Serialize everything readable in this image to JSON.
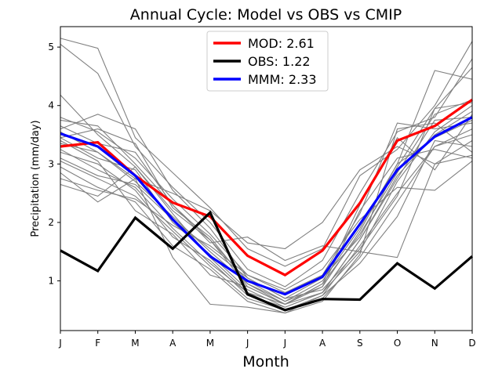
{
  "chart_data": {
    "type": "line",
    "title": "Annual Cycle: Model vs OBS vs CMIP",
    "xlabel": "Month",
    "ylabel": "Precipitation (mm/day)",
    "categories": [
      "J",
      "F",
      "M",
      "A",
      "M",
      "J",
      "J",
      "A",
      "S",
      "O",
      "N",
      "D"
    ],
    "ylim": [
      0.15,
      5.35
    ],
    "yticks": [
      1,
      2,
      3,
      4,
      5
    ],
    "legend_position": "upper center",
    "series": [
      {
        "name": "MOD",
        "legend_label": "MOD: 2.61",
        "color": "#ff0000",
        "values": [
          3.3,
          3.37,
          2.8,
          2.34,
          2.1,
          1.43,
          1.1,
          1.52,
          2.33,
          3.4,
          3.65,
          4.1
        ]
      },
      {
        "name": "OBS",
        "legend_label": "OBS: 1.22",
        "color": "#000000",
        "values": [
          1.52,
          1.17,
          2.08,
          1.55,
          2.17,
          0.77,
          0.5,
          0.69,
          0.68,
          1.3,
          0.87,
          1.42
        ]
      },
      {
        "name": "MMM",
        "legend_label": "MMM: 2.33",
        "color": "#0000ff",
        "values": [
          3.52,
          3.3,
          2.8,
          2.05,
          1.42,
          1.0,
          0.77,
          1.07,
          1.97,
          2.9,
          3.47,
          3.8
        ]
      }
    ],
    "cmip_color": "#808080",
    "cmip_series": [
      [
        5.15,
        4.98,
        3.45,
        2.85,
        2.25,
        1.55,
        1.25,
        1.55,
        2.8,
        3.25,
        4.0,
        5.1
      ],
      [
        5.05,
        4.55,
        3.3,
        2.6,
        2.0,
        1.2,
        0.9,
        1.35,
        2.5,
        3.55,
        3.8,
        4.8
      ],
      [
        4.18,
        3.5,
        2.95,
        2.2,
        1.7,
        1.0,
        0.65,
        1.0,
        1.9,
        3.0,
        4.6,
        4.45
      ],
      [
        3.8,
        3.55,
        3.1,
        2.4,
        1.8,
        1.1,
        0.8,
        1.1,
        2.15,
        3.7,
        3.6,
        3.7
      ],
      [
        3.6,
        3.85,
        3.6,
        2.55,
        1.9,
        1.05,
        0.7,
        0.85,
        1.55,
        2.45,
        3.95,
        4.05
      ],
      [
        3.75,
        3.65,
        3.0,
        2.3,
        1.7,
        0.9,
        0.6,
        0.95,
        1.8,
        2.85,
        3.85,
        4.1
      ],
      [
        3.45,
        3.1,
        2.9,
        2.0,
        1.45,
        0.85,
        0.55,
        0.8,
        1.7,
        2.8,
        3.5,
        3.9
      ],
      [
        3.35,
        3.2,
        2.7,
        2.1,
        1.5,
        0.95,
        0.65,
        0.9,
        1.85,
        3.0,
        3.45,
        3.75
      ],
      [
        3.25,
        2.9,
        2.6,
        1.9,
        1.3,
        0.8,
        0.5,
        0.75,
        1.6,
        2.5,
        3.3,
        3.6
      ],
      [
        3.2,
        3.0,
        2.55,
        1.75,
        1.35,
        0.75,
        0.55,
        0.8,
        1.5,
        2.7,
        3.55,
        4.0
      ],
      [
        3.05,
        2.75,
        2.45,
        1.85,
        1.25,
        0.7,
        0.5,
        0.7,
        1.4,
        2.35,
        3.3,
        3.5
      ],
      [
        2.95,
        2.6,
        2.35,
        1.6,
        1.2,
        0.65,
        0.45,
        0.75,
        1.3,
        2.1,
        3.4,
        3.3
      ],
      [
        2.85,
        2.35,
        2.75,
        2.5,
        2.2,
        1.65,
        1.55,
        2.0,
        2.9,
        3.3,
        3.0,
        3.4
      ],
      [
        2.75,
        2.55,
        2.4,
        1.95,
        1.6,
        1.1,
        0.85,
        1.2,
        2.05,
        2.6,
        2.55,
        3.05
      ],
      [
        3.55,
        3.2,
        2.75,
        1.4,
        0.6,
        0.55,
        0.45,
        0.65,
        1.45,
        3.6,
        3.7,
        3.2
      ],
      [
        3.65,
        3.35,
        3.2,
        2.3,
        1.65,
        1.75,
        1.35,
        1.6,
        1.5,
        1.4,
        3.0,
        3.15
      ],
      [
        3.4,
        3.05,
        2.2,
        1.8,
        1.1,
        0.9,
        0.6,
        0.9,
        2.2,
        3.1,
        3.25,
        3.1
      ],
      [
        3.1,
        2.8,
        2.65,
        2.05,
        1.55,
        1.05,
        0.7,
        1.05,
        1.75,
        2.95,
        3.95,
        4.65
      ],
      [
        2.65,
        2.45,
        2.95,
        2.15,
        1.4,
        0.8,
        0.6,
        0.95,
        2.3,
        3.45,
        2.9,
        3.85
      ],
      [
        3.45,
        3.6,
        3.35,
        2.25,
        1.75,
        0.95,
        0.6,
        0.8,
        1.7,
        2.75,
        3.75,
        3.8
      ]
    ]
  }
}
